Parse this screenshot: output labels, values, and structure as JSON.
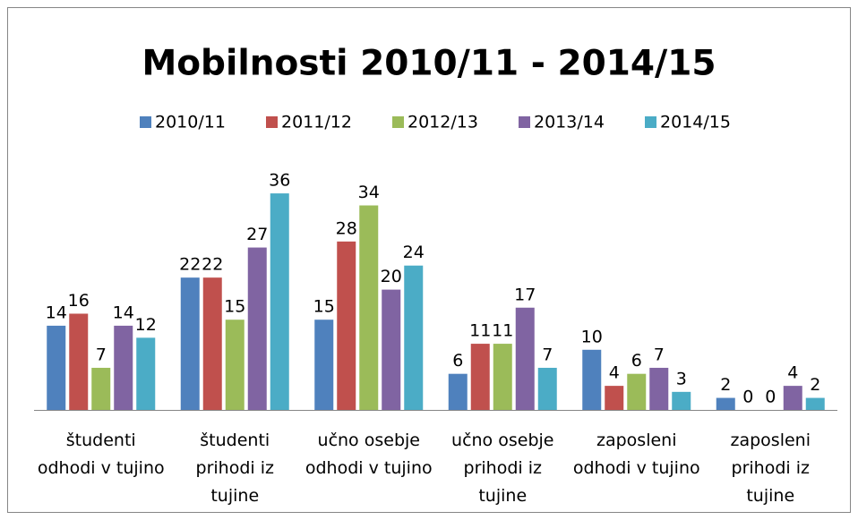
{
  "chart_data": {
    "type": "bar",
    "title": "Mobilnosti 2010/11 - 2014/15",
    "categories": [
      "študenti odhodi v tujino",
      "študenti prihodi iz tujine",
      "učno osebje odhodi v tujino",
      "učno osebje prihodi iz tujine",
      "zaposleni odhodi v tujino",
      "zaposleni prihodi iz tujine"
    ],
    "series": [
      {
        "name": "2010/11",
        "color": "#4f81bd",
        "values": [
          14,
          22,
          15,
          6,
          10,
          2
        ]
      },
      {
        "name": "2011/12",
        "color": "#c0504d",
        "values": [
          16,
          22,
          28,
          11,
          4,
          0
        ]
      },
      {
        "name": "2012/13",
        "color": "#9bbb59",
        "values": [
          7,
          15,
          34,
          11,
          6,
          0
        ]
      },
      {
        "name": "2013/14",
        "color": "#8064a2",
        "values": [
          14,
          27,
          20,
          17,
          7,
          4
        ]
      },
      {
        "name": "2014/15",
        "color": "#4bacc6",
        "values": [
          12,
          36,
          24,
          7,
          3,
          2
        ]
      }
    ],
    "legend": "top"
  }
}
